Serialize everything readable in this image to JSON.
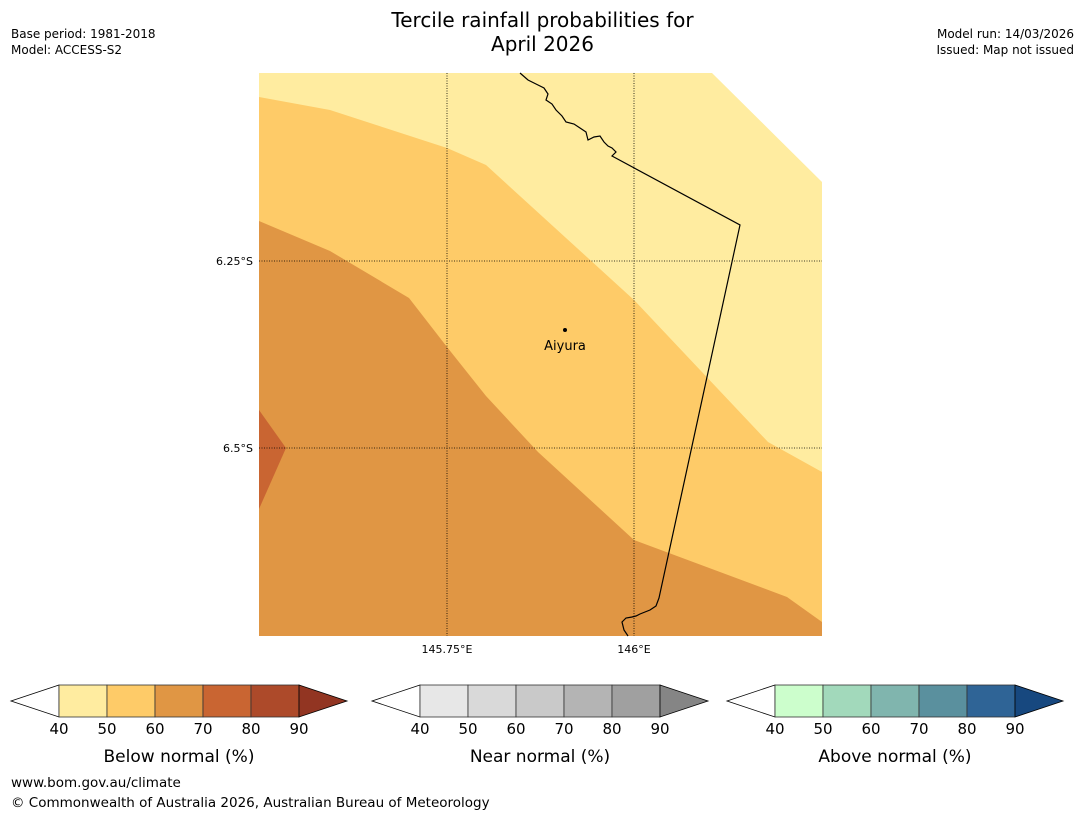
{
  "header": {
    "base_period": "Base period: 1981-2018",
    "model": "Model: ACCESS-S2",
    "title_line1": "Tercile rainfall probabilities for",
    "title_line2": "April 2026",
    "model_run": "Model run: 14/03/2026",
    "issued": "Issued: Map not issued"
  },
  "map": {
    "lat_labels": [
      "6.25°S",
      "6.5°S"
    ],
    "lon_labels": [
      "145.75°E",
      "146°E"
    ],
    "place": {
      "name": "Aiyura"
    },
    "colors": {
      "below_40_50": "#ffeca0",
      "below_50_60": "#fecb68",
      "below_60_70": "#e09644",
      "below_70_80": "#c96532"
    }
  },
  "legends": [
    {
      "label": "Below normal (%)",
      "ticks": [
        "40",
        "50",
        "60",
        "70",
        "80",
        "90"
      ],
      "colors": [
        "#ffffff",
        "#ffeca0",
        "#fecb68",
        "#e09644",
        "#c96532",
        "#ad4a2a",
        "#923522"
      ]
    },
    {
      "label": "Near normal (%)",
      "ticks": [
        "40",
        "50",
        "60",
        "70",
        "80",
        "90"
      ],
      "colors": [
        "#ffffff",
        "#e7e7e7",
        "#d9d9d9",
        "#c9c9c9",
        "#b4b4b4",
        "#a0a0a0",
        "#858585"
      ]
    },
    {
      "label": "Above normal (%)",
      "ticks": [
        "40",
        "50",
        "60",
        "70",
        "80",
        "90"
      ],
      "colors": [
        "#ffffff",
        "#ccfecc",
        "#a2d9bb",
        "#80b5ae",
        "#5a909e",
        "#2f6496",
        "#17487f"
      ]
    }
  ],
  "footer": {
    "url": "www.bom.gov.au/climate",
    "copyright": "© Commonwealth of Australia 2026, Australian Bureau of Meteorology"
  }
}
